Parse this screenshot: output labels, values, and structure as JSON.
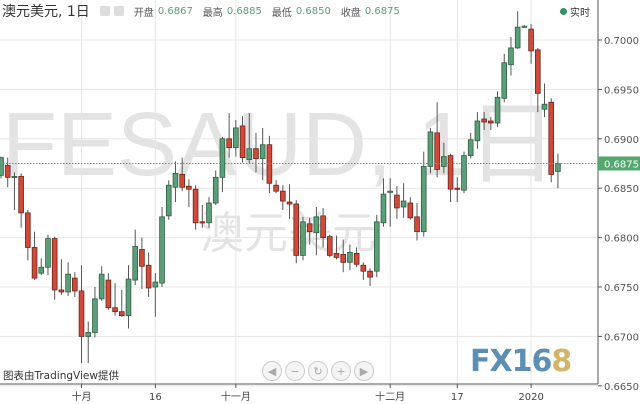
{
  "header": {
    "title": "澳元美元, 1日",
    "open_label": "开盘",
    "open": "0.6867",
    "high_label": "最高",
    "high": "0.6885",
    "low_label": "最低",
    "low": "0.6850",
    "close_label": "收盘",
    "close": "0.6875",
    "live_label": "实时"
  },
  "watermark": {
    "symbol": "FESAUD, 1日",
    "name": "澳元美元"
  },
  "credit": "图表由TradingView提供",
  "logo": {
    "main": "FX16",
    "accent": "8"
  },
  "nav_buttons": [
    {
      "name": "scroll-left",
      "icon": "◀"
    },
    {
      "name": "zoom-out",
      "icon": "−"
    },
    {
      "name": "reset",
      "icon": "↻"
    },
    {
      "name": "zoom-in",
      "icon": "+"
    },
    {
      "name": "scroll-right",
      "icon": "▶"
    }
  ],
  "colors": {
    "up": "#5b9f78",
    "down": "#d0493a",
    "last_price_bg": "#53a76f",
    "grid": "#e6e6e6"
  },
  "chart_data": {
    "type": "candlestick",
    "ylim": [
      0.665,
      0.7035
    ],
    "y_ticks": [
      "0.7000",
      "0.6950",
      "0.6900",
      "0.6850",
      "0.6800",
      "0.6750",
      "0.6700",
      "0.6650"
    ],
    "last_price": "0.6875",
    "x_labels": [
      {
        "label": "十月",
        "index": 12
      },
      {
        "label": "16",
        "index": 23
      },
      {
        "label": "十一月",
        "index": 35
      },
      {
        "label": "十二月",
        "index": 58
      },
      {
        "label": "17",
        "index": 68
      },
      {
        "label": "2020",
        "index": 79
      }
    ],
    "grid": true,
    "ohlc": [
      [
        0.6863,
        0.6882,
        0.686,
        0.6881
      ],
      [
        0.6873,
        0.6881,
        0.6851,
        0.6861
      ],
      [
        0.6862,
        0.6866,
        0.6828,
        0.6862
      ],
      [
        0.6862,
        0.6865,
        0.681,
        0.6825
      ],
      [
        0.6825,
        0.6828,
        0.6777,
        0.679
      ],
      [
        0.679,
        0.6806,
        0.6757,
        0.6759
      ],
      [
        0.6764,
        0.6779,
        0.6762,
        0.677
      ],
      [
        0.677,
        0.6803,
        0.6762,
        0.6799
      ],
      [
        0.6799,
        0.6801,
        0.6737,
        0.6747
      ],
      [
        0.6747,
        0.6778,
        0.6742,
        0.6745
      ],
      [
        0.6745,
        0.6775,
        0.6741,
        0.6763
      ],
      [
        0.6759,
        0.6765,
        0.674,
        0.6746
      ],
      [
        0.6746,
        0.6772,
        0.6673,
        0.67
      ],
      [
        0.67,
        0.6715,
        0.6673,
        0.6704
      ],
      [
        0.6704,
        0.675,
        0.6699,
        0.6738
      ],
      [
        0.6738,
        0.6771,
        0.6736,
        0.6763
      ],
      [
        0.6757,
        0.6764,
        0.6727,
        0.6729
      ],
      [
        0.6729,
        0.6754,
        0.6721,
        0.6725
      ],
      [
        0.6725,
        0.6747,
        0.672,
        0.6721
      ],
      [
        0.6721,
        0.6772,
        0.6708,
        0.6758
      ],
      [
        0.6757,
        0.6808,
        0.6752,
        0.6791
      ],
      [
        0.6788,
        0.68,
        0.6748,
        0.6771
      ],
      [
        0.6772,
        0.6785,
        0.674,
        0.6749
      ],
      [
        0.675,
        0.6764,
        0.672,
        0.6755
      ],
      [
        0.6754,
        0.6831,
        0.675,
        0.6821
      ],
      [
        0.6822,
        0.6858,
        0.6818,
        0.6853
      ],
      [
        0.6851,
        0.6877,
        0.6836,
        0.6865
      ],
      [
        0.6864,
        0.6881,
        0.6847,
        0.6851
      ],
      [
        0.6852,
        0.6859,
        0.6831,
        0.6849
      ],
      [
        0.6849,
        0.6853,
        0.6808,
        0.6815
      ],
      [
        0.6816,
        0.6833,
        0.681,
        0.6815
      ],
      [
        0.6815,
        0.6841,
        0.681,
        0.6835
      ],
      [
        0.6835,
        0.6868,
        0.6833,
        0.6861
      ],
      [
        0.6861,
        0.6902,
        0.6846,
        0.69
      ],
      [
        0.69,
        0.6926,
        0.6881,
        0.6891
      ],
      [
        0.6891,
        0.6919,
        0.6882,
        0.6911
      ],
      [
        0.6913,
        0.6923,
        0.6876,
        0.6881
      ],
      [
        0.6879,
        0.6926,
        0.6875,
        0.689
      ],
      [
        0.689,
        0.6906,
        0.6866,
        0.688
      ],
      [
        0.688,
        0.6911,
        0.6858,
        0.6894
      ],
      [
        0.6894,
        0.6903,
        0.6845,
        0.6855
      ],
      [
        0.6853,
        0.6858,
        0.6845,
        0.6847
      ],
      [
        0.6847,
        0.6853,
        0.6828,
        0.6837
      ],
      [
        0.6836,
        0.6854,
        0.6819,
        0.6834
      ],
      [
        0.6834,
        0.6838,
        0.6774,
        0.6782
      ],
      [
        0.6782,
        0.6821,
        0.6777,
        0.6816
      ],
      [
        0.6814,
        0.682,
        0.6793,
        0.6806
      ],
      [
        0.6805,
        0.6831,
        0.6782,
        0.6821
      ],
      [
        0.6822,
        0.683,
        0.679,
        0.68
      ],
      [
        0.6801,
        0.6803,
        0.678,
        0.6782
      ],
      [
        0.6784,
        0.6802,
        0.6778,
        0.678
      ],
      [
        0.6783,
        0.6798,
        0.6765,
        0.6775
      ],
      [
        0.6775,
        0.6793,
        0.6767,
        0.6785
      ],
      [
        0.6784,
        0.679,
        0.677,
        0.6773
      ],
      [
        0.6772,
        0.6775,
        0.6757,
        0.6766
      ],
      [
        0.6766,
        0.6769,
        0.6751,
        0.676
      ],
      [
        0.6766,
        0.6823,
        0.676,
        0.6816
      ],
      [
        0.6815,
        0.686,
        0.6811,
        0.6844
      ],
      [
        0.6846,
        0.686,
        0.6811,
        0.6847
      ],
      [
        0.6843,
        0.6852,
        0.6819,
        0.683
      ],
      [
        0.6831,
        0.6855,
        0.682,
        0.6837
      ],
      [
        0.6835,
        0.6841,
        0.6818,
        0.682
      ],
      [
        0.6821,
        0.6835,
        0.6797,
        0.6806
      ],
      [
        0.6806,
        0.6887,
        0.6801,
        0.6872
      ],
      [
        0.6872,
        0.6911,
        0.6865,
        0.6907
      ],
      [
        0.6906,
        0.6937,
        0.6861,
        0.6869
      ],
      [
        0.6872,
        0.6896,
        0.6865,
        0.6882
      ],
      [
        0.6883,
        0.6885,
        0.6836,
        0.6849
      ],
      [
        0.685,
        0.6861,
        0.6836,
        0.6849
      ],
      [
        0.6848,
        0.6887,
        0.6845,
        0.6883
      ],
      [
        0.6883,
        0.6906,
        0.688,
        0.6899
      ],
      [
        0.6898,
        0.6927,
        0.689,
        0.6918
      ],
      [
        0.692,
        0.6927,
        0.6909,
        0.6917
      ],
      [
        0.6918,
        0.6922,
        0.6909,
        0.6916
      ],
      [
        0.6916,
        0.6948,
        0.6912,
        0.6942
      ],
      [
        0.6941,
        0.6986,
        0.6937,
        0.6977
      ],
      [
        0.6975,
        0.7003,
        0.6964,
        0.6992
      ],
      [
        0.6992,
        0.7029,
        0.6991,
        0.7013
      ],
      [
        0.7014,
        0.7015,
        0.7013,
        0.7014
      ],
      [
        0.7011,
        0.7016,
        0.6976,
        0.6989
      ],
      [
        0.699,
        0.6992,
        0.6927,
        0.6946
      ],
      [
        0.693,
        0.6956,
        0.6922,
        0.6935
      ],
      [
        0.6937,
        0.6941,
        0.6856,
        0.6864
      ],
      [
        0.6867,
        0.6885,
        0.685,
        0.6875
      ]
    ]
  }
}
